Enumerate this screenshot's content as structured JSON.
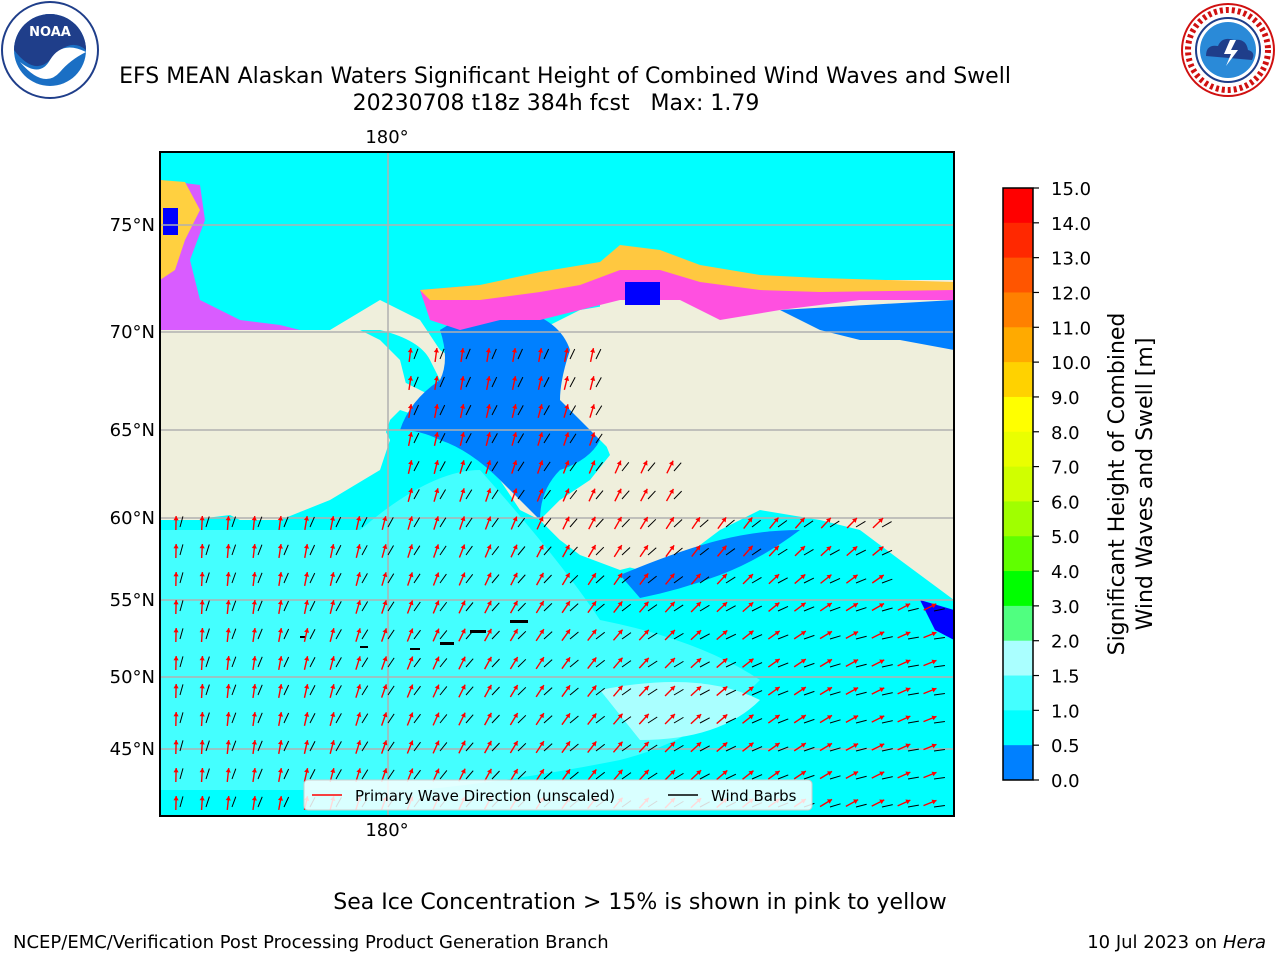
{
  "header": {
    "title_line1": "EFS MEAN Alaskan Waters Significant Height of Combined Wind Waves and Swell",
    "title_line2": "20230708 t18z 384h fcst   Max: 1.79"
  },
  "logos": {
    "left": "noaa-logo",
    "left_text": "NOAA",
    "right": "national-weather-service-logo"
  },
  "map": {
    "top_lon_label": "180°",
    "bottom_lon_label": "180°",
    "lat_labels": [
      "75°N",
      "70°N",
      "65°N",
      "60°N",
      "55°N",
      "50°N",
      "45°N"
    ],
    "colors": {
      "land": "#efefdc",
      "ocean_1_1p5": "#00ffff",
      "ocean_1p5_2": "#44ffff",
      "ocean_0p5_1": "#0080ff",
      "ocean_0_0p5": "#0000ff",
      "grid": "#b0b0b0",
      "wave_arrow": "#ff0000",
      "wind_barb": "#000000"
    },
    "legend": {
      "wave_label": "Primary Wave Direction (unscaled)",
      "wind_label": "Wind Barbs"
    }
  },
  "colorbar": {
    "label_line1": "Significant Height of Combined",
    "label_line2": "Wind Waves and Swell [m]",
    "ticks": [
      "15.0",
      "14.0",
      "13.0",
      "12.0",
      "11.0",
      "10.0",
      "9.0",
      "8.0",
      "7.0",
      "6.0",
      "5.0",
      "4.0",
      "3.0",
      "2.0",
      "1.5",
      "1.0",
      "0.5",
      "0.0"
    ],
    "colors": [
      "#ff0000",
      "#ff2800",
      "#ff5500",
      "#ff8000",
      "#ffaa00",
      "#ffd200",
      "#ffff00",
      "#eaff00",
      "#d0ff00",
      "#a0ff00",
      "#60ff00",
      "#00ff00",
      "#50ff80",
      "#aaffff",
      "#44ffff",
      "#00ffff",
      "#0080ff",
      "#0000ff"
    ]
  },
  "caption": "Sea Ice Concentration > 15% is shown in pink to yellow",
  "footer": {
    "left": "NCEP/EMC/Verification Post Processing Product Generation Branch",
    "right_prefix": "10 Jul 2023 on ",
    "right_host": "Hera"
  }
}
